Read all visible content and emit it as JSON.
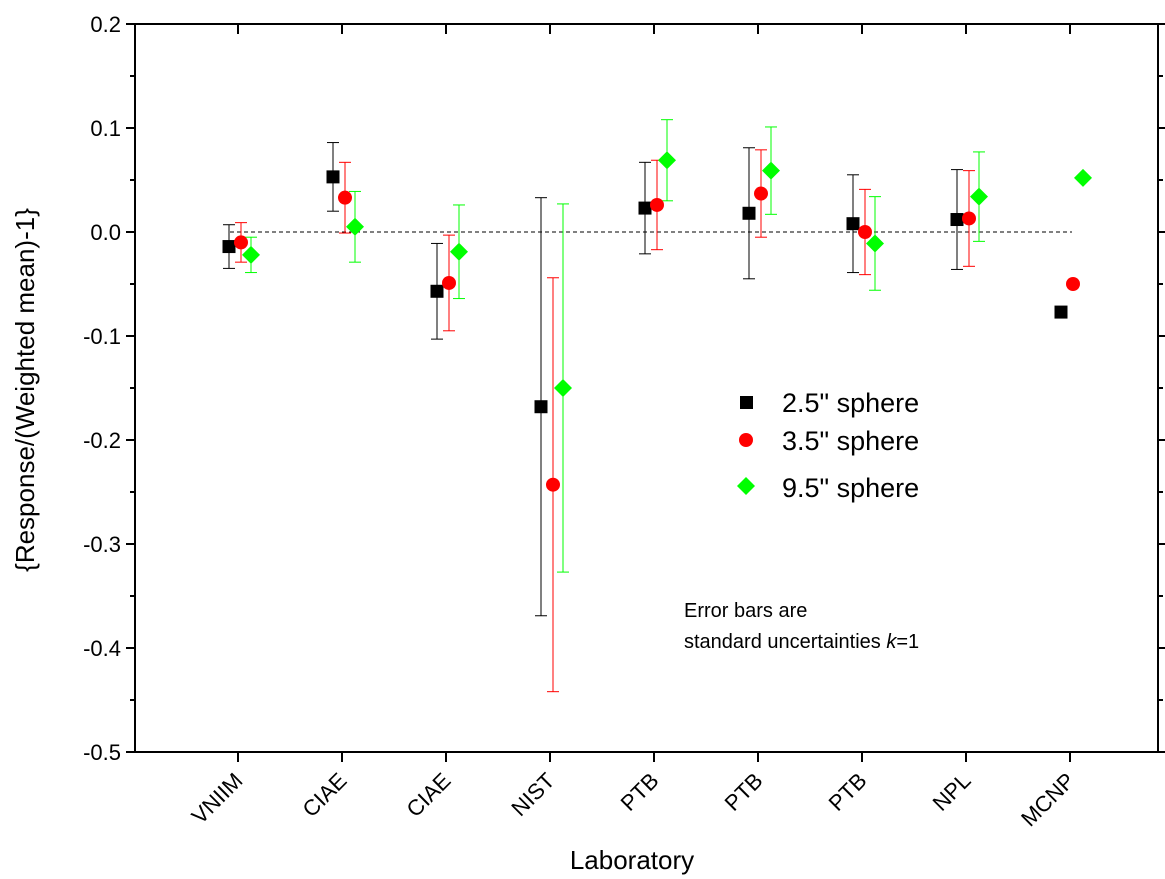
{
  "chart_data": {
    "type": "scatter",
    "xlabel": "Laboratory",
    "ylabel": "{Response/(Weighted mean)-1}",
    "categories": [
      "VNIIM",
      "CIAE",
      "CIAE",
      "NIST",
      "PTB",
      "PTB",
      "PTB",
      "NPL",
      "MCNP"
    ],
    "ylim": [
      -0.5,
      0.2
    ],
    "yticks": [
      -0.5,
      -0.4,
      -0.3,
      -0.2,
      -0.1,
      0.0,
      0.1,
      0.2
    ],
    "ytick_labels": [
      "-0.5",
      "-0.4",
      "-0.3",
      "-0.2",
      "-0.1",
      "0.0",
      "0.1",
      "0.2"
    ],
    "reference_line": 0.0,
    "grid": false,
    "legend_position": "center-right",
    "series": [
      {
        "name": "2.5\" sphere",
        "color": "#000000",
        "marker": "square",
        "values": [
          -0.014,
          0.053,
          -0.057,
          -0.168,
          0.023,
          0.018,
          0.008,
          0.012,
          -0.077
        ],
        "errors": [
          0.021,
          0.033,
          0.046,
          0.201,
          0.044,
          0.063,
          0.047,
          0.048,
          null
        ]
      },
      {
        "name": "3.5\" sphere",
        "color": "#ff0000",
        "marker": "circle",
        "values": [
          -0.01,
          0.033,
          -0.049,
          -0.243,
          0.026,
          0.037,
          0.0,
          0.013,
          -0.05
        ],
        "errors": [
          0.019,
          0.034,
          0.046,
          0.199,
          0.043,
          0.042,
          0.041,
          0.046,
          null
        ]
      },
      {
        "name": "9.5\" sphere",
        "color": "#00ff00",
        "marker": "diamond",
        "values": [
          -0.022,
          0.005,
          -0.019,
          -0.15,
          0.069,
          0.059,
          -0.011,
          0.034,
          0.052
        ],
        "errors": [
          0.017,
          0.034,
          0.045,
          0.177,
          0.039,
          0.042,
          0.045,
          0.043,
          null
        ]
      }
    ],
    "annotation_line1": "Error bars are",
    "annotation_line2_prefix": "standard uncertainties ",
    "annotation_k": "k",
    "annotation_suffix": "=1"
  }
}
